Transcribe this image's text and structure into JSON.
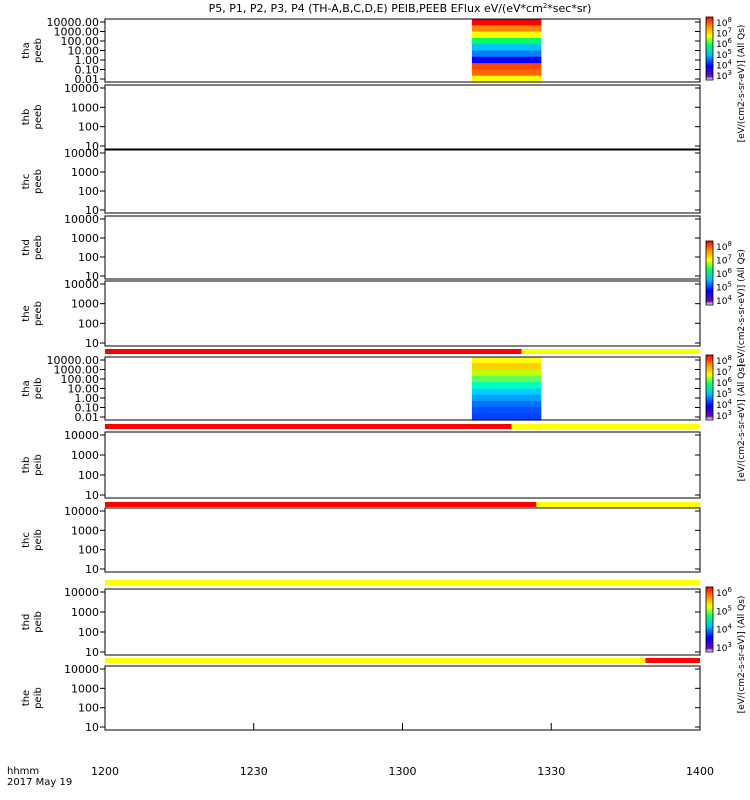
{
  "title": "P5, P1, P2, P3, P4 (TH-A,B,C,D,E) PEIB,PEEB EFlux eV/(eV*cm",
  "title_sup": "2",
  "title_tail": "*sec*sr)",
  "colorbar_labels": [
    "[eV/(cm2-s-sr-eV)] (All Qs)",
    "[eV/(cm2-s-sr-eV)] (All Qs)",
    "[eV/(cm2-s-sr-eV)] (All Qs)",
    "[eV/(cm2-s-sr-eV)] (All Qs)"
  ],
  "colorbar_tick_sets": [
    [
      "10^8",
      "10^7",
      "10^6",
      "10^5",
      "10^4",
      "10^3"
    ],
    [
      "10^8",
      "10^7",
      "10^6",
      "10^5",
      "10^4"
    ],
    [
      "10^8",
      "10^7",
      "10^6",
      "10^5",
      "10^4",
      "10^3"
    ],
    [
      "10^6",
      "10^5",
      "10^4",
      "10^3"
    ]
  ],
  "time_axis": {
    "label_1": "hhmm",
    "label_2": "2017 May 19",
    "ticks": [
      "1200",
      "1230",
      "1300",
      "1330",
      "1400"
    ]
  },
  "colors": {
    "red": "#ff0000",
    "yellow": "#ffff00",
    "black": "#000000"
  },
  "chart_data": {
    "type": "heatmap",
    "x_range": [
      "1200",
      "1400"
    ],
    "panels": [
      {
        "id": "tha-peeb",
        "probe": "tha",
        "product": "peeb",
        "yscale": "log",
        "y_ticks": [
          "10000.00",
          "1000.00",
          "100.00",
          "10.00",
          "1.00",
          "0.10",
          "0.01"
        ],
        "data_interval": [
          "1314",
          "1328"
        ],
        "colorbar": 0
      },
      {
        "id": "thb-peeb",
        "probe": "thb",
        "product": "peeb",
        "yscale": "log",
        "y_ticks": [
          "10000",
          "1000",
          "100",
          "10"
        ]
      },
      {
        "id": "thc-peeb",
        "probe": "thc",
        "product": "peeb",
        "yscale": "log",
        "y_ticks": [
          "10000",
          "1000",
          "100",
          "10"
        ]
      },
      {
        "id": "thd-peeb",
        "probe": "thd",
        "product": "peeb",
        "yscale": "log",
        "y_ticks": [
          "10000",
          "1000",
          "100",
          "10"
        ],
        "colorbar": 1
      },
      {
        "id": "the-peeb",
        "probe": "the",
        "product": "peeb",
        "yscale": "log",
        "y_ticks": [
          "10000",
          "1000",
          "100",
          "10"
        ]
      },
      {
        "id": "tha-peib",
        "probe": "tha",
        "product": "peib",
        "yscale": "log",
        "y_ticks": [
          "10000.00",
          "1000.00",
          "100.00",
          "10.00",
          "1.00",
          "0.10",
          "0.01"
        ],
        "data_interval": [
          "1314",
          "1328"
        ],
        "colorbar": 2
      },
      {
        "id": "thb-peib",
        "probe": "thb",
        "product": "peib",
        "yscale": "log",
        "y_ticks": [
          "10000",
          "1000",
          "100",
          "10"
        ]
      },
      {
        "id": "thc-peib",
        "probe": "thc",
        "product": "peib",
        "yscale": "log",
        "y_ticks": [
          "10000",
          "1000",
          "100",
          "10"
        ]
      },
      {
        "id": "thd-peib",
        "probe": "thd",
        "product": "peib",
        "yscale": "log",
        "y_ticks": [
          "10000",
          "1000",
          "100",
          "10"
        ],
        "colorbar": 3
      },
      {
        "id": "the-peib",
        "probe": "the",
        "product": "peib",
        "yscale": "log",
        "y_ticks": [
          "10000",
          "1000",
          "100",
          "10"
        ]
      }
    ],
    "mode_bars": [
      {
        "after_panel": 4,
        "segments": [
          {
            "from": "1200",
            "to": "1324",
            "color": "red"
          },
          {
            "from": "1324",
            "to": "1400",
            "color": "yellow"
          }
        ]
      },
      {
        "after_panel": 5,
        "segments": [
          {
            "from": "1200",
            "to": "1322",
            "color": "red"
          },
          {
            "from": "1322",
            "to": "1400",
            "color": "yellow"
          }
        ]
      },
      {
        "after_panel": 6,
        "segments": [
          {
            "from": "1200",
            "to": "1327",
            "color": "red"
          },
          {
            "from": "1327",
            "to": "1400",
            "color": "yellow"
          }
        ]
      },
      {
        "after_panel": 7,
        "segments": [
          {
            "from": "1200",
            "to": "1400",
            "color": "yellow"
          }
        ]
      },
      {
        "after_panel": 8,
        "segments": [
          {
            "from": "1200",
            "to": "1349",
            "color": "yellow"
          },
          {
            "from": "1349",
            "to": "1400",
            "color": "red"
          }
        ]
      }
    ]
  }
}
